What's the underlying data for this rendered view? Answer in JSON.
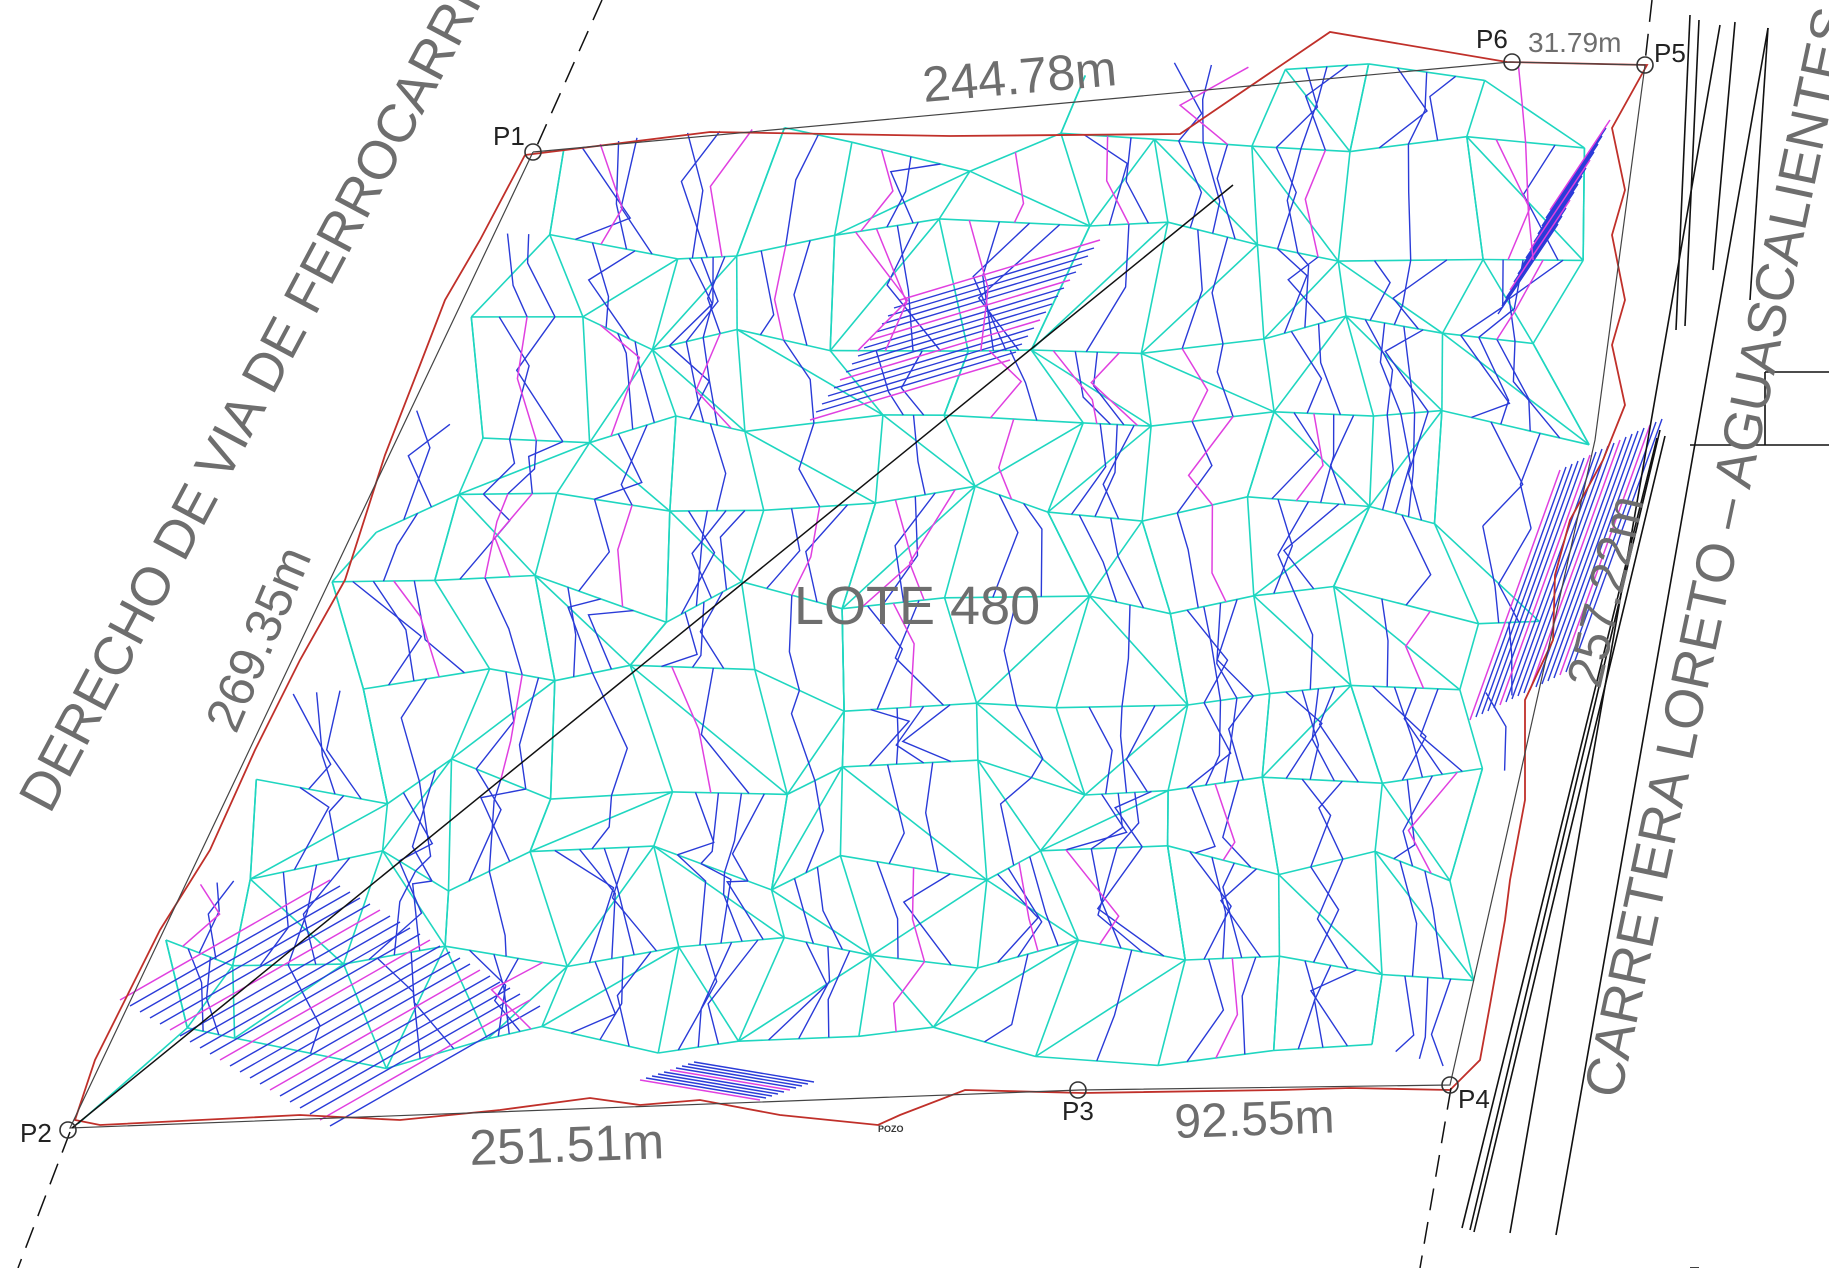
{
  "plan": {
    "lot_label": "LOTE 480",
    "road_label": "CARRETERA LORETO – AGUASCALIENTES",
    "rail_label": "DERECHO DE VIA DE FERROCARRIL",
    "well_label": "POZO",
    "points": [
      "P1",
      "P2",
      "P3",
      "P4",
      "P5",
      "P6"
    ],
    "dimensions": {
      "top": "244.78m",
      "left": "269.35m",
      "bottom_main": "251.51m",
      "bottom_right": "92.55m",
      "right": "257.22m",
      "top_right": "31.79m"
    },
    "colors": {
      "triangulation": "#1fd6c0",
      "contour": "#2a3bd8",
      "index_contour": "#e040e0",
      "boundary": "#c0302a",
      "linework": "#222222"
    }
  }
}
